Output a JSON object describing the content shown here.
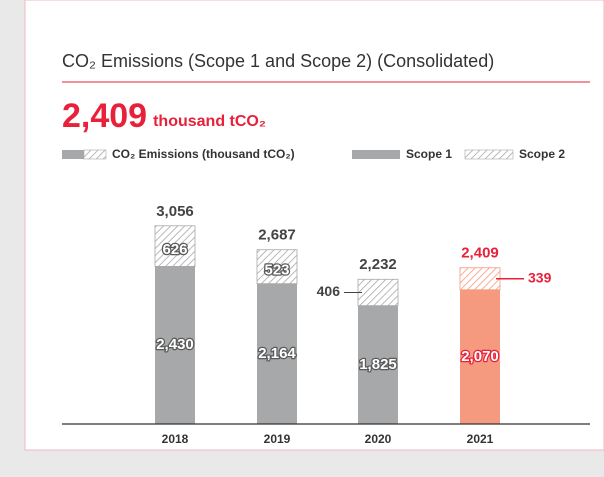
{
  "chart_data": {
    "type": "stacked_bar",
    "title": "CO₂ Emissions (Scope 1 and Scope 2) (Consolidated)",
    "headline": "2,409",
    "headline_unit": "thousand tCO₂",
    "total_legend": "CO₂ Emissions (thousand tCO₂)",
    "categories": [
      "2018",
      "2019",
      "2020",
      "2021"
    ],
    "series": [
      {
        "name": "Scope 1",
        "color": "#a7a8aa",
        "colors": [
          "#a7a8aa",
          "#a7a8aa",
          "#a7a8aa",
          "#f59a7e"
        ],
        "values": [
          2430,
          2164,
          1825,
          2070
        ],
        "value_labels": [
          "2,430",
          "2,164",
          "1,825",
          "2,070"
        ],
        "label_colors": [
          "#5a5a5a",
          "#5a5a5a",
          "#5a5a5a",
          "#e8203a"
        ]
      },
      {
        "name": "Scope 2",
        "color": "#a7a8aa",
        "colors": [
          "#a7a8aa",
          "#a7a8aa",
          "#a7a8aa",
          "#f59a7e"
        ],
        "hatched": true,
        "values": [
          626,
          523,
          406,
          339
        ],
        "value_labels": [
          "626",
          "523",
          "406",
          "339"
        ],
        "label_colors": [
          "#5a5a5a",
          "#5a5a5a",
          "#444444",
          "#e8203a"
        ],
        "label_sides": [
          "center",
          "center",
          "left",
          "right"
        ]
      }
    ],
    "totals": [
      3056,
      2687,
      2232,
      2409
    ],
    "total_labels": [
      "3,056",
      "2,687",
      "2,232",
      "2,409"
    ],
    "total_colors": [
      "#444444",
      "#444444",
      "#444444",
      "#e8203a"
    ],
    "accent_color": "#e8203a",
    "ylim": [
      0,
      3500
    ]
  }
}
